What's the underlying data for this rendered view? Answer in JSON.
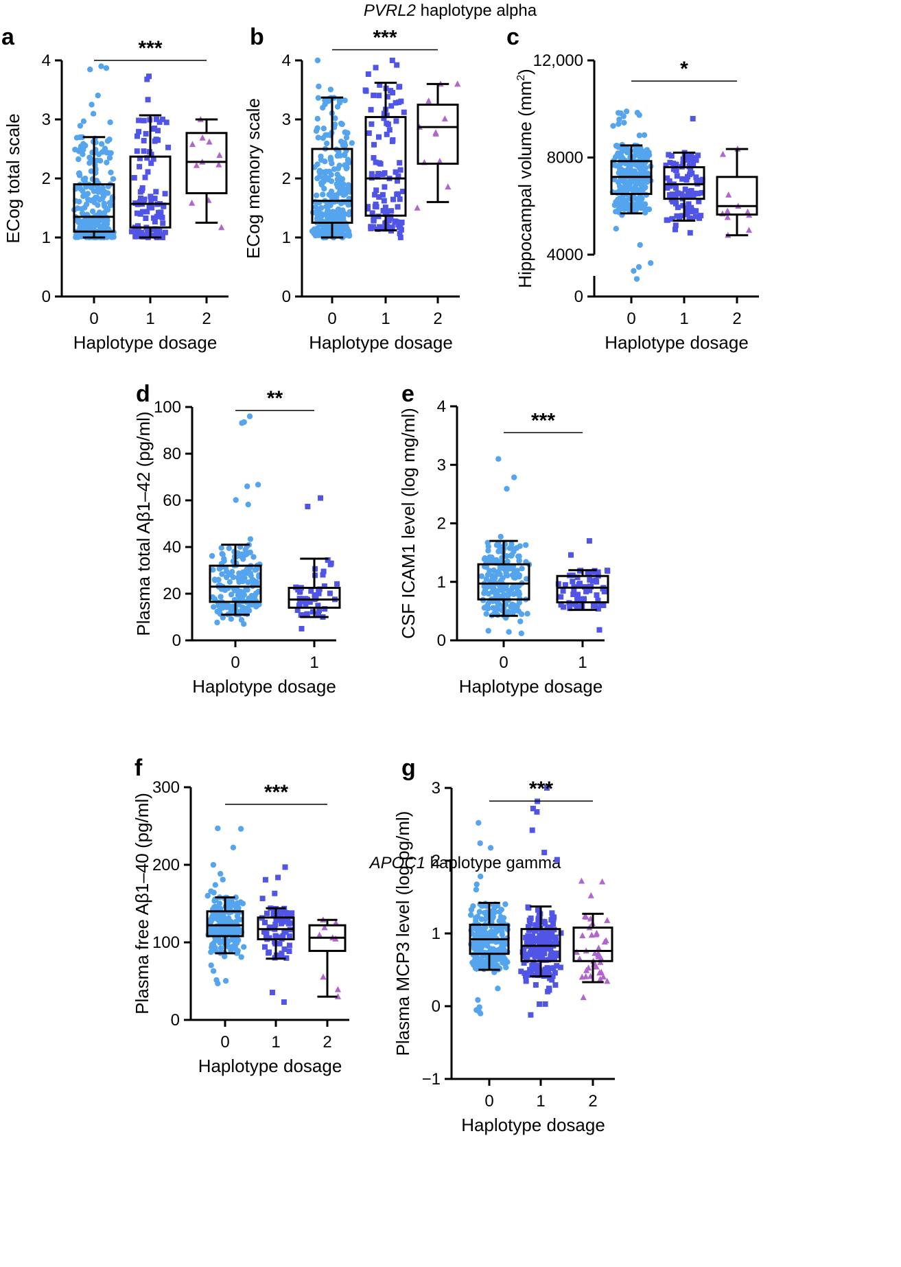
{
  "sections": {
    "top": {
      "italic": "PVRL2",
      "rest": " haplotype alpha"
    },
    "bottom": {
      "italic": "APOC1",
      "rest": " haplotype gamma"
    }
  },
  "colors": {
    "group0": "#55a4ee",
    "group1": "#5055e6",
    "group2": "#b066cc",
    "axis": "#000000"
  },
  "chart_data": [
    {
      "panel": "a",
      "type": "box",
      "title": "",
      "xlabel": "Haplotype dosage",
      "ylabel": "ECog total scale",
      "ylim": [
        0,
        4
      ],
      "yticks": [
        0,
        1,
        2,
        3,
        4
      ],
      "ytick_labels": [
        "0",
        "1",
        "2",
        "3",
        "4"
      ],
      "categories": [
        "0",
        "1",
        "2"
      ],
      "markers": [
        "circle",
        "square",
        "triangle"
      ],
      "n_points": [
        260,
        95,
        11
      ],
      "boxes": [
        {
          "whisker_low": 1.0,
          "q1": 1.1,
          "median": 1.35,
          "q3": 1.9,
          "whisker_high": 2.7,
          "min": 1.0,
          "max": 3.9
        },
        {
          "whisker_low": 1.0,
          "q1": 1.17,
          "median": 1.57,
          "q3": 2.37,
          "whisker_high": 3.07,
          "min": 1.0,
          "max": 3.73
        },
        {
          "whisker_low": 1.25,
          "q1": 1.75,
          "median": 2.28,
          "q3": 2.77,
          "whisker_high": 3.0,
          "min": 1.17,
          "max": 3.0
        }
      ],
      "significance": {
        "label": "***",
        "from": 0,
        "to": 2,
        "y": 4.0
      }
    },
    {
      "panel": "b",
      "type": "box",
      "title": "",
      "xlabel": "Haplotype dosage",
      "ylabel": "ECog memory scale",
      "ylim": [
        0,
        4
      ],
      "yticks": [
        0,
        1,
        2,
        3,
        4
      ],
      "ytick_labels": [
        "0",
        "1",
        "2",
        "3",
        "4"
      ],
      "categories": [
        "0",
        "1",
        "2"
      ],
      "markers": [
        "circle",
        "square",
        "triangle"
      ],
      "n_points": [
        300,
        110,
        11
      ],
      "boxes": [
        {
          "whisker_low": 1.0,
          "q1": 1.25,
          "median": 1.62,
          "q3": 2.5,
          "whisker_high": 3.37,
          "min": 1.0,
          "max": 4.0
        },
        {
          "whisker_low": 1.12,
          "q1": 1.37,
          "median": 2.0,
          "q3": 3.04,
          "whisker_high": 3.62,
          "min": 1.0,
          "max": 4.0
        },
        {
          "whisker_low": 1.6,
          "q1": 2.25,
          "median": 2.87,
          "q3": 3.25,
          "whisker_high": 3.6,
          "min": 1.5,
          "max": 3.6
        }
      ],
      "significance": {
        "label": "***",
        "from": 0,
        "to": 2,
        "y": 4.18
      }
    },
    {
      "panel": "c",
      "type": "box",
      "title": "",
      "xlabel": "Haplotype dosage",
      "ylabel": "Hippocampal volume (mm²)",
      "axis_break": true,
      "ylim": [
        0,
        12000
      ],
      "yticks": [
        0,
        4000,
        8000,
        12000
      ],
      "ytick_labels": [
        "0",
        "4000",
        "8000",
        "12,000"
      ],
      "categories": [
        "0",
        "1",
        "2"
      ],
      "markers": [
        "circle",
        "square",
        "triangle"
      ],
      "n_points": [
        270,
        100,
        11
      ],
      "boxes": [
        {
          "whisker_low": 5700,
          "q1": 6500,
          "median": 7200,
          "q3": 7850,
          "whisker_high": 8500,
          "min": 3000,
          "max": 9900
        },
        {
          "whisker_low": 5400,
          "q1": 6300,
          "median": 6900,
          "q3": 7600,
          "whisker_high": 8200,
          "min": 4900,
          "max": 9600
        },
        {
          "whisker_low": 4800,
          "q1": 5650,
          "median": 6000,
          "q3": 7200,
          "whisker_high": 8350,
          "min": 4800,
          "max": 8350
        }
      ],
      "significance": {
        "label": "*",
        "from": 0,
        "to": 2,
        "y": 11150
      }
    },
    {
      "panel": "d",
      "type": "box",
      "title": "",
      "xlabel": "Haplotype dosage",
      "ylabel": "Plasma total Aβ1–42 (pg/ml)",
      "ylim": [
        0,
        100
      ],
      "yticks": [
        0,
        20,
        40,
        60,
        80,
        100
      ],
      "ytick_labels": [
        "0",
        "20",
        "40",
        "60",
        "80",
        "100"
      ],
      "categories": [
        "0",
        "1"
      ],
      "markers": [
        "circle",
        "square"
      ],
      "n_points": [
        180,
        48
      ],
      "boxes": [
        {
          "whisker_low": 11,
          "q1": 16.5,
          "median": 23,
          "q3": 32,
          "whisker_high": 41,
          "min": 7,
          "max": 96
        },
        {
          "whisker_low": 10,
          "q1": 14,
          "median": 17.5,
          "q3": 22.5,
          "whisker_high": 35,
          "min": 5,
          "max": 61
        }
      ],
      "significance": {
        "label": "**",
        "from": 0,
        "to": 1,
        "y": 98.5
      }
    },
    {
      "panel": "e",
      "type": "box",
      "title": "",
      "xlabel": "Haplotype dosage",
      "ylabel": "CSF ICAM1 level (log mg/ml)",
      "ylim": [
        0,
        4
      ],
      "yticks": [
        0,
        1,
        2,
        3,
        4
      ],
      "ytick_labels": [
        "0",
        "1",
        "2",
        "3",
        "4"
      ],
      "categories": [
        "0",
        "1"
      ],
      "markers": [
        "circle",
        "square"
      ],
      "n_points": [
        190,
        60
      ],
      "boxes": [
        {
          "whisker_low": 0.42,
          "q1": 0.7,
          "median": 0.97,
          "q3": 1.3,
          "whisker_high": 1.7,
          "min": 0.12,
          "max": 3.1
        },
        {
          "whisker_low": 0.52,
          "q1": 0.65,
          "median": 0.9,
          "q3": 1.1,
          "whisker_high": 1.2,
          "min": 0.18,
          "max": 1.7
        }
      ],
      "significance": {
        "label": "***",
        "from": 0,
        "to": 1,
        "y": 3.55
      }
    },
    {
      "panel": "f",
      "type": "box",
      "title": "",
      "xlabel": "Haplotype dosage",
      "ylabel": "Plasma free Aβ1–40 (pg/ml)",
      "ylim": [
        0,
        300
      ],
      "yticks": [
        0,
        100,
        200,
        300
      ],
      "ytick_labels": [
        "0",
        "100",
        "200",
        "300"
      ],
      "categories": [
        "0",
        "1",
        "2"
      ],
      "markers": [
        "circle",
        "square",
        "triangle"
      ],
      "n_points": [
        200,
        75,
        9
      ],
      "boxes": [
        {
          "whisker_low": 86,
          "q1": 108,
          "median": 122,
          "q3": 140,
          "whisker_high": 158,
          "min": 47,
          "max": 247
        },
        {
          "whisker_low": 79,
          "q1": 104,
          "median": 117,
          "q3": 132,
          "whisker_high": 144,
          "min": 23,
          "max": 197
        },
        {
          "whisker_low": 30,
          "q1": 89,
          "median": 106,
          "q3": 122,
          "whisker_high": 129,
          "min": 30,
          "max": 129
        }
      ],
      "significance": {
        "label": "***",
        "from": 0,
        "to": 2,
        "y": 278
      }
    },
    {
      "panel": "g",
      "type": "box",
      "title": "",
      "xlabel": "Haplotype dosage",
      "ylabel": "Plasma MCP3 level (log pg/ml)",
      "ylim": [
        -1,
        3
      ],
      "yticks": [
        -1,
        0,
        1,
        2,
        3
      ],
      "ytick_labels": [
        "−1",
        "0",
        "1",
        "2",
        "3"
      ],
      "categories": [
        "0",
        "1",
        "2"
      ],
      "markers": [
        "circle",
        "square",
        "triangle"
      ],
      "n_points": [
        260,
        200,
        40
      ],
      "boxes": [
        {
          "whisker_low": 0.5,
          "q1": 0.72,
          "median": 0.92,
          "q3": 1.12,
          "whisker_high": 1.42,
          "min": -0.1,
          "max": 2.52
        },
        {
          "whisker_low": 0.41,
          "q1": 0.62,
          "median": 0.83,
          "q3": 1.06,
          "whisker_high": 1.37,
          "min": -0.12,
          "max": 3.0
        },
        {
          "whisker_low": 0.33,
          "q1": 0.62,
          "median": 0.76,
          "q3": 1.08,
          "whisker_high": 1.27,
          "min": 0.12,
          "max": 1.72
        }
      ],
      "significance": {
        "label": "***",
        "from": 0,
        "to": 2,
        "y": 2.82
      }
    }
  ]
}
